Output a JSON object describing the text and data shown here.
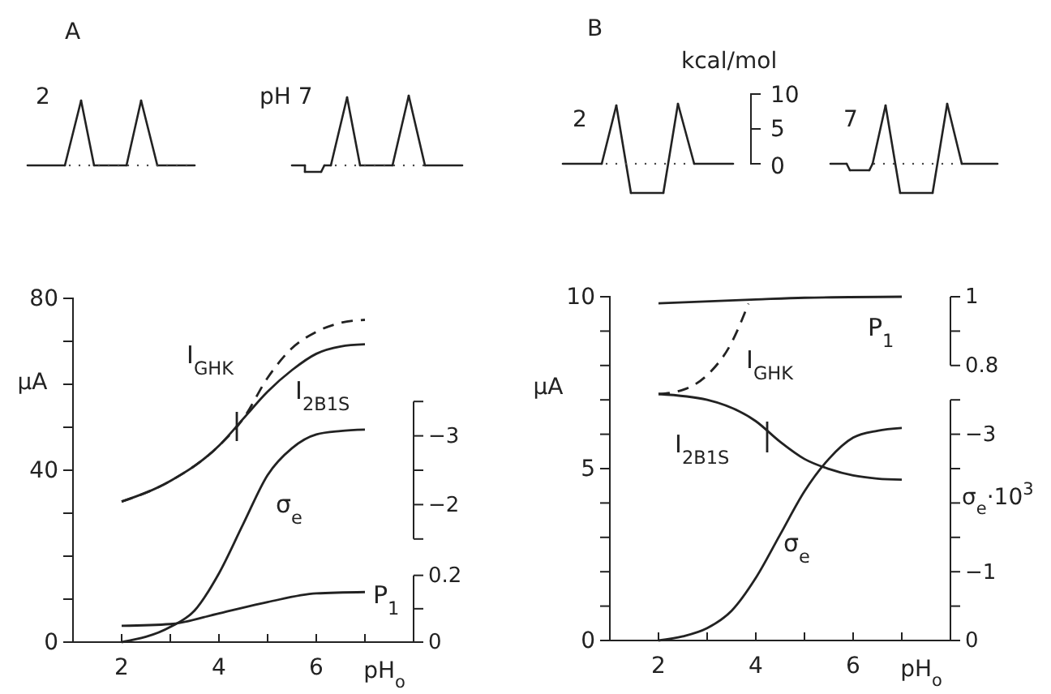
{
  "chart_data": [
    {
      "type": "line",
      "title": "A",
      "xlabel": "pH$_{o}$",
      "ylabel": "µA",
      "xlim": [
        1,
        8
      ],
      "xticks": [
        2,
        {
          "value": 3,
          "label": null
        },
        4,
        {
          "value": 5,
          "label": null
        },
        6,
        {
          "value": 7,
          "label": null
        }
      ],
      "ylim": [
        0,
        80
      ],
      "yticks": [
        0,
        {
          "value": 10,
          "label": null
        },
        {
          "value": 20,
          "label": null
        },
        {
          "value": 30,
          "label": null
        },
        40,
        {
          "value": 50,
          "label": null
        },
        {
          "value": 60,
          "label": null
        },
        {
          "value": 70,
          "label": null
        },
        80
      ],
      "y2lim": [
        0,
        -5
      ],
      "y2ticks": [
        {
          "value": -1.5,
          "label": null
        },
        -2,
        {
          "value": -2.5,
          "label": null
        },
        -3,
        {
          "value": -3.5,
          "label": null
        }
      ],
      "y3lim": [
        0,
        1.03
      ],
      "y3ticks": [
        0,
        {
          "value": 0.1,
          "label": null
        },
        0.2
      ],
      "series": [
        {
          "name": "I$_{GHK}$",
          "color": "#222222",
          "line_style": "dashed",
          "x": [
            2,
            3,
            4,
            4.5,
            5,
            5.5,
            6,
            6.5,
            7
          ],
          "values": [
            32.7,
            37.5,
            45.7,
            52,
            61.5,
            68.4,
            72.2,
            74.3,
            75
          ]
        },
        {
          "name": "I$_{2B1S}$",
          "color": "#222222",
          "line_style": "solid",
          "x": [
            2,
            3,
            4,
            4.5,
            5,
            5.5,
            6,
            6.5,
            7
          ],
          "values": [
            32.7,
            37.5,
            45.7,
            52,
            58.3,
            63.3,
            67.1,
            68.8,
            69.3
          ]
        },
        {
          "name": "σ$_{e}$",
          "color": "#222222",
          "line_style": "solid",
          "axis": "y2",
          "x": [
            2,
            3,
            3.5,
            4,
            4.5,
            5,
            5.5,
            6,
            6.5,
            7
          ],
          "values": [
            0,
            -0.22,
            -0.46,
            -1.0,
            -1.72,
            -2.43,
            -2.82,
            -3.02,
            -3.07,
            -3.09
          ]
        },
        {
          "name": "P$_{1}$",
          "color": "#222222",
          "line_style": "solid",
          "axis": "y3",
          "x": [
            2,
            3,
            4,
            5,
            6,
            7
          ],
          "values": [
            0.049,
            0.054,
            0.086,
            0.12,
            0.146,
            0.15
          ]
        }
      ],
      "annotations": [
        "2",
        "pH 7"
      ]
    },
    {
      "type": "line",
      "title": "B",
      "xlabel": "pH$_{o}$",
      "ylabel": "µA",
      "y2label": "σ$_{e}$·10$^{3}$",
      "xlim": [
        1,
        8
      ],
      "xticks": [
        2,
        {
          "value": 3,
          "label": null
        },
        4,
        {
          "value": 5,
          "label": null
        },
        6,
        {
          "value": 7,
          "label": null
        }
      ],
      "ylim": [
        0,
        10
      ],
      "yticks": [
        0,
        {
          "value": 1,
          "label": null
        },
        {
          "value": 2,
          "label": null
        },
        {
          "value": 3,
          "label": null
        },
        {
          "value": 4,
          "label": null
        },
        5,
        {
          "value": 6,
          "label": null
        },
        {
          "value": 7,
          "label": null
        },
        {
          "value": 8,
          "label": null
        },
        {
          "value": 9,
          "label": null
        },
        10
      ],
      "y2lim": [
        0,
        -5
      ],
      "y2ticks": [
        0,
        {
          "value": -0.5,
          "label": null
        },
        -1,
        {
          "value": -1.5,
          "label": null
        },
        {
          "value": -2,
          "label": null
        },
        {
          "value": -2.5,
          "label": null
        },
        -3,
        {
          "value": -3.5,
          "label": null
        }
      ],
      "y3lim": [
        0,
        1
      ],
      "y3ticks": [
        0.8,
        {
          "value": 0.9,
          "label": null
        },
        1
      ],
      "series": [
        {
          "name": "I$_{GHK}$",
          "color": "#222222",
          "line_style": "dashed",
          "x": [
            2,
            2.5,
            3,
            3.5,
            3.85
          ],
          "values": [
            7.17,
            7.29,
            7.72,
            8.66,
            9.8
          ]
        },
        {
          "name": "I$_{2B1S}$",
          "color": "#222222",
          "line_style": "solid",
          "x": [
            2,
            3,
            4,
            4.5,
            5,
            5.5,
            6,
            6.5,
            7
          ],
          "values": [
            7.17,
            7.0,
            6.38,
            5.78,
            5.28,
            4.99,
            4.8,
            4.71,
            4.68
          ]
        },
        {
          "name": "σ$_{e}$",
          "color": "#222222",
          "line_style": "solid",
          "axis": "y2",
          "x": [
            2,
            2.5,
            3,
            3.5,
            4,
            4.5,
            5,
            5.5,
            6,
            6.5,
            7
          ],
          "values": [
            0,
            -0.06,
            -0.18,
            -0.43,
            -0.91,
            -1.54,
            -2.17,
            -2.64,
            -2.95,
            -3.05,
            -3.09
          ]
        },
        {
          "name": "P$_{1}$",
          "color": "#222222",
          "line_style": "solid",
          "axis": "y3",
          "x": [
            2,
            4,
            5,
            7
          ],
          "values": [
            0.981,
            0.992,
            0.997,
            1.0
          ]
        }
      ],
      "annotations": [
        "2",
        "7",
        "kcal/mol",
        "10",
        "5",
        "0"
      ]
    }
  ]
}
